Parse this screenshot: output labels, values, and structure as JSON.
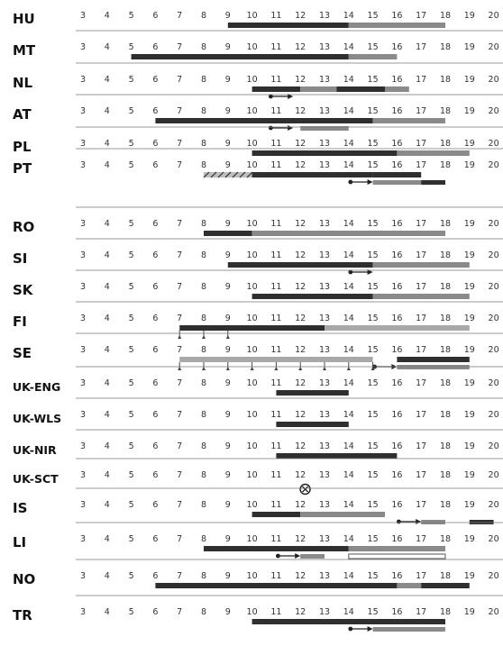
{
  "chart_data": {
    "type": "gantt-timeline",
    "hours": [
      "3",
      "4",
      "5",
      "6",
      "7",
      "8",
      "9",
      "10",
      "11",
      "12",
      "13",
      "14",
      "15",
      "16",
      "17",
      "18",
      "19",
      "20"
    ],
    "colors": {
      "dark": "#2f2f2f",
      "grey": "#8a8a8a",
      "light": "#a8a8a8"
    },
    "rows": [
      {
        "country": "HU",
        "bars": [
          {
            "start": 9,
            "end": 14,
            "color": "dark"
          },
          {
            "start": 14,
            "end": 18,
            "color": "grey"
          }
        ]
      },
      {
        "country": "MT",
        "bars": [
          {
            "start": 5,
            "end": 14,
            "color": "dark"
          },
          {
            "start": 14,
            "end": 16,
            "color": "grey"
          }
        ]
      },
      {
        "country": "NL",
        "bars": [
          {
            "start": 10,
            "end": 12,
            "color": "dark"
          },
          {
            "start": 12,
            "end": 13.5,
            "color": "grey"
          },
          {
            "start": 13.5,
            "end": 15.5,
            "color": "dark"
          },
          {
            "start": 15.5,
            "end": 16.5,
            "color": "grey"
          }
        ],
        "arrows": [
          {
            "start": 10.7,
            "end": 11.7
          }
        ]
      },
      {
        "country": "AT",
        "bars": [
          {
            "start": 6,
            "end": 15,
            "color": "dark"
          },
          {
            "start": 15,
            "end": 18,
            "color": "grey"
          }
        ],
        "arrows": [
          {
            "start": 10.7,
            "end": 11.7
          }
        ],
        "lower_bars": [
          {
            "start": 12,
            "end": 14,
            "color": "grey"
          }
        ]
      },
      {
        "country": "PL",
        "bars": [
          {
            "start": 10,
            "end": 16,
            "color": "dark"
          },
          {
            "start": 16,
            "end": 19,
            "color": "grey"
          }
        ]
      },
      {
        "country": "PT",
        "bars": [
          {
            "start": 8,
            "end": 15,
            "color": "dark"
          },
          {
            "start": 15,
            "end": 17,
            "color": "dark"
          }
        ],
        "hatched": [
          {
            "start": 8,
            "end": 10
          }
        ],
        "arrows": [
          {
            "start": 14,
            "end": 15
          }
        ],
        "lower_bars": [
          {
            "start": 15,
            "end": 17,
            "color": "grey"
          },
          {
            "start": 17,
            "end": 18,
            "color": "dark"
          }
        ]
      },
      {
        "country": "RO",
        "bars": [
          {
            "start": 8,
            "end": 10,
            "color": "dark"
          },
          {
            "start": 10,
            "end": 18,
            "color": "grey"
          }
        ]
      },
      {
        "country": "SI",
        "bars": [
          {
            "start": 9,
            "end": 15,
            "color": "dark"
          },
          {
            "start": 15,
            "end": 19,
            "color": "grey"
          }
        ],
        "arrows": [
          {
            "start": 14,
            "end": 15
          }
        ]
      },
      {
        "country": "SK",
        "bars": [
          {
            "start": 10,
            "end": 15,
            "color": "dark"
          },
          {
            "start": 15,
            "end": 19,
            "color": "grey"
          }
        ]
      },
      {
        "country": "FI",
        "bars": [
          {
            "start": 7,
            "end": 13,
            "color": "dark"
          },
          {
            "start": 13,
            "end": 19,
            "color": "light"
          }
        ],
        "ticks": [
          7,
          8,
          9
        ]
      },
      {
        "country": "SE",
        "bars": [
          {
            "start": 7,
            "end": 15,
            "color": "light"
          },
          {
            "start": 16,
            "end": 19,
            "color": "dark"
          }
        ],
        "ticks": [
          7,
          8,
          9,
          10,
          11,
          12,
          13,
          14,
          15
        ],
        "arrows": [
          {
            "start": 15,
            "end": 16
          }
        ],
        "lower_bars": [
          {
            "start": 16,
            "end": 19,
            "color": "grey"
          }
        ]
      },
      {
        "country": "UK-ENG",
        "bars": [
          {
            "start": 11,
            "end": 14,
            "color": "dark"
          }
        ]
      },
      {
        "country": "UK-WLS",
        "bars": [
          {
            "start": 11,
            "end": 14,
            "color": "dark"
          }
        ]
      },
      {
        "country": "UK-NIR",
        "bars": [
          {
            "start": 11,
            "end": 16,
            "color": "dark"
          }
        ]
      },
      {
        "country": "UK-SCT",
        "bars": [],
        "circle_x": 12.2
      },
      {
        "country": "IS",
        "bars": [
          {
            "start": 10,
            "end": 12,
            "color": "dark"
          },
          {
            "start": 12,
            "end": 15.5,
            "color": "grey"
          }
        ],
        "arrows": [
          {
            "start": 16,
            "end": 17
          }
        ],
        "lower_bars": [
          {
            "start": 17,
            "end": 18,
            "color": "grey"
          },
          {
            "start": 19,
            "end": 20,
            "color": "dark"
          }
        ]
      },
      {
        "country": "LI",
        "bars": [
          {
            "start": 8,
            "end": 14,
            "color": "dark"
          },
          {
            "start": 14,
            "end": 18,
            "color": "grey"
          }
        ],
        "arrows": [
          {
            "start": 11,
            "end": 12
          }
        ],
        "lower_bars": [
          {
            "start": 12,
            "end": 13,
            "color": "grey"
          }
        ],
        "open_bars": [
          {
            "start": 14,
            "end": 18
          }
        ]
      },
      {
        "country": "NO",
        "bars": [
          {
            "start": 6,
            "end": 16,
            "color": "dark"
          },
          {
            "start": 16,
            "end": 17,
            "color": "grey"
          },
          {
            "start": 17,
            "end": 19,
            "color": "dark"
          }
        ]
      },
      {
        "country": "TR",
        "bars": [
          {
            "start": 10,
            "end": 18,
            "color": "dark"
          }
        ],
        "arrows": [
          {
            "start": 14,
            "end": 15
          }
        ],
        "lower_bars": [
          {
            "start": 15,
            "end": 18,
            "color": "grey"
          }
        ]
      }
    ]
  }
}
